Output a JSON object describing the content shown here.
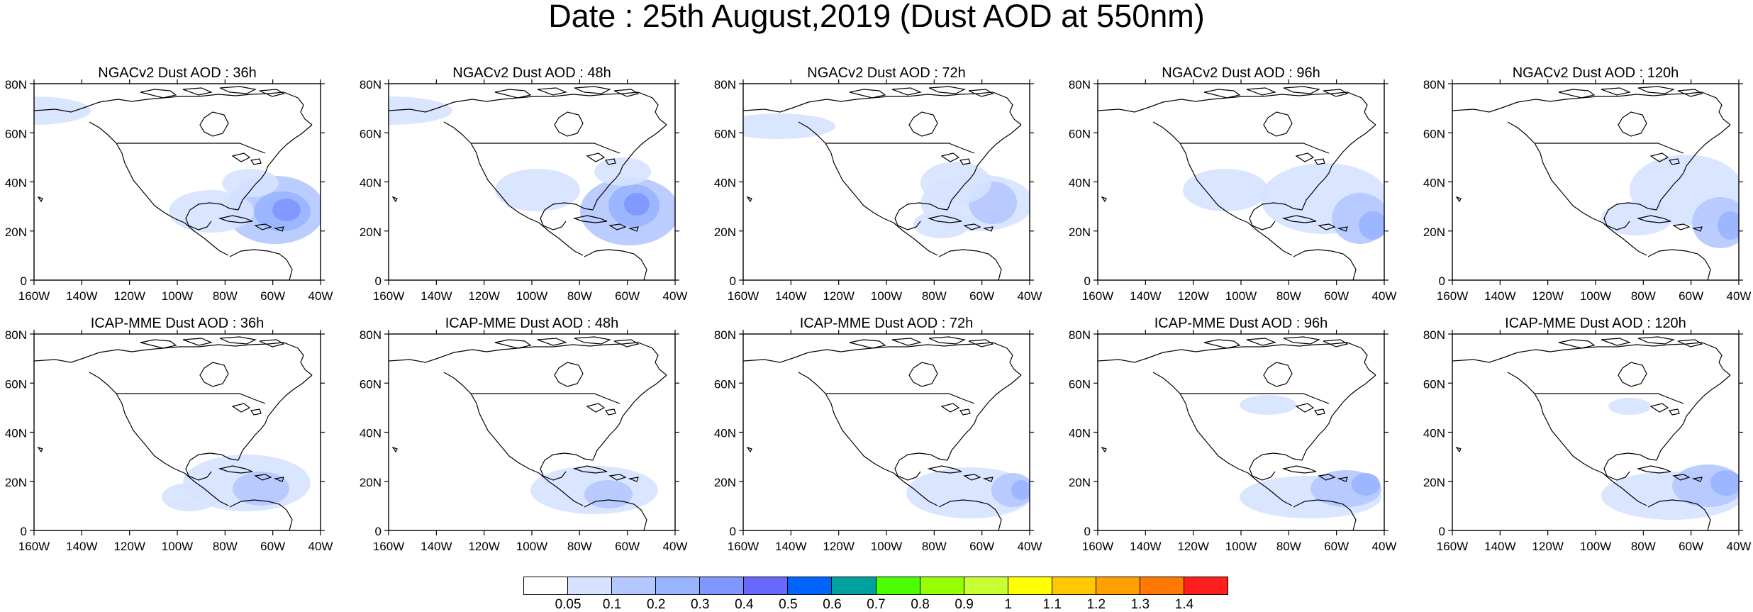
{
  "title": "Date : 25th August,2019 (Dust AOD at 550nm)",
  "panels": [
    {
      "title": "NGACv2 Dust AOD : 36h"
    },
    {
      "title": "NGACv2 Dust AOD : 48h"
    },
    {
      "title": "NGACv2 Dust AOD : 72h"
    },
    {
      "title": "NGACv2 Dust AOD : 96h"
    },
    {
      "title": "NGACv2 Dust AOD : 120h"
    },
    {
      "title": "ICAP-MME Dust AOD : 36h"
    },
    {
      "title": "ICAP-MME Dust AOD : 48h"
    },
    {
      "title": "ICAP-MME Dust AOD : 72h"
    },
    {
      "title": "ICAP-MME Dust AOD : 96h"
    },
    {
      "title": "ICAP-MME Dust AOD : 120h"
    }
  ],
  "axes": {
    "lat_ticks": [
      "80N",
      "60N",
      "40N",
      "20N",
      "0"
    ],
    "lon_ticks": [
      "160W",
      "140W",
      "120W",
      "100W",
      "80W",
      "60W",
      "40W"
    ]
  },
  "colorbar": {
    "labels": [
      "0.05",
      "0.1",
      "0.2",
      "0.3",
      "0.4",
      "0.5",
      "0.6",
      "0.7",
      "0.8",
      "0.9",
      "1",
      "1.1",
      "1.2",
      "1.3",
      "1.4"
    ],
    "colors": [
      "#ffffff",
      "#d6e2ff",
      "#b4c7ff",
      "#99b4ff",
      "#7f97ff",
      "#6868ff",
      "#0064ff",
      "#00a0a0",
      "#4bff00",
      "#96ff00",
      "#c8ff32",
      "#ffff00",
      "#ffc800",
      "#ffa000",
      "#ff7800",
      "#ff1e1e"
    ]
  }
}
